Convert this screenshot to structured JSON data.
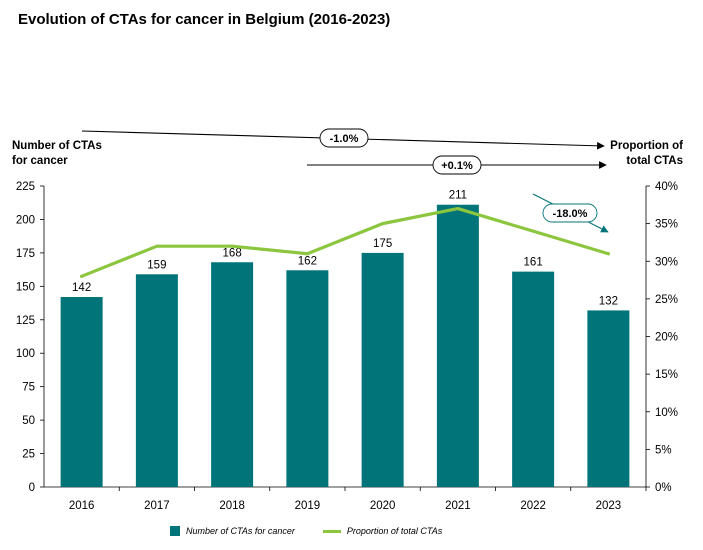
{
  "title": "Evolution of CTAs for cancer in Belgium (2016-2023)",
  "colors": {
    "bar": "#017479",
    "line": "#8cc63f",
    "arrow_teal": "#017479"
  },
  "chart_data": {
    "type": "bar+line",
    "title": "Evolution of CTAs for cancer in Belgium (2016-2023)",
    "categories": [
      "2016",
      "2017",
      "2018",
      "2019",
      "2020",
      "2021",
      "2022",
      "2023"
    ],
    "series": [
      {
        "name": "Number of CTAs for cancer",
        "type": "bar",
        "axis": "left",
        "values": [
          142,
          159,
          168,
          162,
          175,
          211,
          161,
          132
        ],
        "labels": [
          "142",
          "159",
          "168",
          "162",
          "175",
          "211",
          "161",
          "132"
        ]
      },
      {
        "name": "Proportion of total CTAs",
        "type": "line",
        "axis": "right",
        "values": [
          0.28,
          0.32,
          0.32,
          0.31,
          0.35,
          0.37,
          0.34,
          0.31
        ]
      }
    ],
    "y_left": {
      "label": "Number of CTAs for cancer",
      "label_lines": [
        "Number of CTAs",
        "for cancer"
      ],
      "min": 0,
      "max": 225,
      "ticks": [
        0,
        25,
        50,
        75,
        100,
        125,
        150,
        175,
        200,
        225
      ],
      "tick_labels": [
        "0",
        "25",
        "50",
        "75",
        "100",
        "125",
        "150",
        "175",
        "200",
        "225"
      ]
    },
    "y_right": {
      "label": "Proportion of total CTAs",
      "label_lines": [
        "Proportion of",
        "total CTAs"
      ],
      "min": 0,
      "max": 0.4,
      "ticks": [
        0,
        0.05,
        0.1,
        0.15,
        0.2,
        0.25,
        0.3,
        0.35,
        0.4
      ],
      "tick_labels": [
        "0%",
        "5%",
        "10%",
        "15%",
        "20%",
        "25%",
        "30%",
        "35%",
        "40%"
      ]
    },
    "annotations": [
      {
        "text": "-1.0%",
        "from": "2016",
        "to": "2023"
      },
      {
        "text": "+0.1%",
        "from": "2019",
        "to": "2023"
      },
      {
        "text": "-18.0%",
        "from": "2022",
        "to": "2023"
      }
    ],
    "legend": [
      "Number of CTAs for cancer",
      "Proportion of total CTAs"
    ],
    "legend_position": "bottom"
  }
}
